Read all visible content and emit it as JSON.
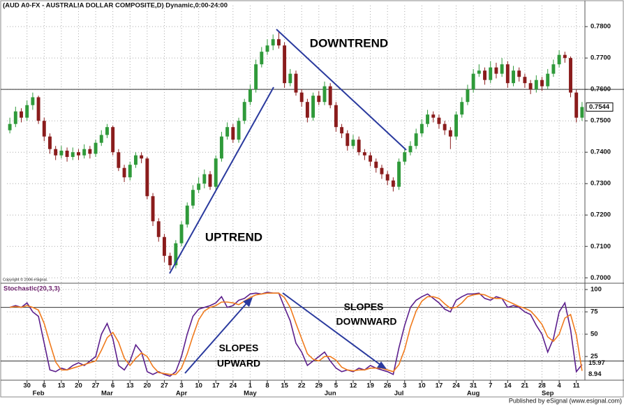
{
  "chart_data": [
    {
      "type": "candlestick",
      "title": "(AUD A0-FX - AUSTRALIA DOLLAR COMPOSITE,D) Dynamic,0:00-24:00",
      "copyright": "Copyright © 2006 eSignal.",
      "annotations": [
        "DOWNTREND",
        "UPTREND"
      ],
      "up_color": "#2f9a3a",
      "down_color": "#8a1c1c",
      "grid": true,
      "hline": 0.76,
      "xlim": [
        -0.5,
        100.5
      ],
      "xticks": [
        {
          "value": 3,
          "label": "30"
        },
        {
          "value": 6,
          "label": "6"
        },
        {
          "value": 9,
          "label": "13"
        },
        {
          "value": 12,
          "label": "20"
        },
        {
          "value": 15,
          "label": "27"
        },
        {
          "value": 18,
          "label": "6"
        },
        {
          "value": 21,
          "label": "13"
        },
        {
          "value": 24,
          "label": "20"
        },
        {
          "value": 27,
          "label": "27"
        },
        {
          "value": 30,
          "label": "3"
        },
        {
          "value": 33,
          "label": "10"
        },
        {
          "value": 36,
          "label": "17"
        },
        {
          "value": 39,
          "label": "24"
        },
        {
          "value": 42,
          "label": "1"
        },
        {
          "value": 45,
          "label": "8"
        },
        {
          "value": 48,
          "label": "15"
        },
        {
          "value": 51,
          "label": "22"
        },
        {
          "value": 54,
          "label": "29"
        },
        {
          "value": 57,
          "label": "5"
        },
        {
          "value": 60,
          "label": "12"
        },
        {
          "value": 63,
          "label": "19"
        },
        {
          "value": 66,
          "label": "26"
        },
        {
          "value": 69,
          "label": "3"
        },
        {
          "value": 72,
          "label": "10"
        },
        {
          "value": 75,
          "label": "17"
        },
        {
          "value": 78,
          "label": "24"
        },
        {
          "value": 81,
          "label": "31"
        },
        {
          "value": 84,
          "label": "7"
        },
        {
          "value": 87,
          "label": "14"
        },
        {
          "value": 90,
          "label": "21"
        },
        {
          "value": 93,
          "label": "28"
        },
        {
          "value": 96,
          "label": "4"
        },
        {
          "value": 99,
          "label": "11"
        }
      ],
      "month_ticks": [
        {
          "value": 5,
          "label": "Feb"
        },
        {
          "value": 17,
          "label": "Mar"
        },
        {
          "value": 30,
          "label": "Apr"
        },
        {
          "value": 42,
          "label": "May"
        },
        {
          "value": 56,
          "label": "Jun"
        },
        {
          "value": 68,
          "label": "Jul"
        },
        {
          "value": 81,
          "label": "Aug"
        },
        {
          "value": 94,
          "label": "Sep"
        }
      ],
      "ylim": [
        0.6985,
        0.7867
      ],
      "yticks": [
        {
          "value": 0.7,
          "label": "0.7000"
        },
        {
          "value": 0.71,
          "label": "0.7100"
        },
        {
          "value": 0.72,
          "label": "0.7200"
        },
        {
          "value": 0.73,
          "label": "0.7300"
        },
        {
          "value": 0.74,
          "label": "0.7400"
        },
        {
          "value": 0.75,
          "label": "0.7500"
        },
        {
          "value": 0.76,
          "label": "0.7600"
        },
        {
          "value": 0.77,
          "label": "0.7700"
        },
        {
          "value": 0.78,
          "label": "0.7800"
        }
      ],
      "open": [
        0.747,
        0.749,
        0.753,
        0.751,
        0.755,
        0.7575,
        0.75,
        0.745,
        0.741,
        0.739,
        0.7405,
        0.7385,
        0.74,
        0.739,
        0.741,
        0.7395,
        0.743,
        0.7455,
        0.748,
        0.74,
        0.735,
        0.732,
        0.736,
        0.739,
        0.738,
        0.726,
        0.718,
        0.713,
        0.707,
        0.704,
        0.711,
        0.717,
        0.723,
        0.728,
        0.73,
        0.733,
        0.729,
        0.738,
        0.745,
        0.748,
        0.744,
        0.75,
        0.756,
        0.76,
        0.768,
        0.772,
        0.774,
        0.776,
        0.774,
        0.762,
        0.765,
        0.759,
        0.756,
        0.751,
        0.758,
        0.756,
        0.761,
        0.755,
        0.748,
        0.746,
        0.742,
        0.744,
        0.74,
        0.739,
        0.737,
        0.735,
        0.733,
        0.731,
        0.729,
        0.737,
        0.74,
        0.742,
        0.746,
        0.749,
        0.752,
        0.751,
        0.749,
        0.747,
        0.745,
        0.752,
        0.756,
        0.76,
        0.765,
        0.766,
        0.763,
        0.767,
        0.765,
        0.768,
        0.762,
        0.766,
        0.764,
        0.762,
        0.76,
        0.763,
        0.761,
        0.765,
        0.768,
        0.771,
        0.77,
        0.759,
        0.751
      ],
      "high": [
        0.751,
        0.7545,
        0.754,
        0.7565,
        0.759,
        0.758,
        0.751,
        0.746,
        0.742,
        0.742,
        0.7415,
        0.7415,
        0.741,
        0.7425,
        0.742,
        0.744,
        0.747,
        0.749,
        0.7485,
        0.741,
        0.736,
        0.737,
        0.74,
        0.74,
        0.7385,
        0.727,
        0.719,
        0.714,
        0.708,
        0.712,
        0.718,
        0.724,
        0.7295,
        0.732,
        0.7345,
        0.734,
        0.739,
        0.7465,
        0.7495,
        0.749,
        0.751,
        0.757,
        0.7615,
        0.7695,
        0.7735,
        0.776,
        0.7775,
        0.7785,
        0.775,
        0.7665,
        0.766,
        0.76,
        0.757,
        0.759,
        0.7595,
        0.7625,
        0.762,
        0.756,
        0.749,
        0.747,
        0.7455,
        0.745,
        0.741,
        0.74,
        0.738,
        0.736,
        0.734,
        0.732,
        0.738,
        0.7415,
        0.7435,
        0.7475,
        0.7505,
        0.7535,
        0.753,
        0.752,
        0.75,
        0.748,
        0.753,
        0.7575,
        0.7615,
        0.7665,
        0.768,
        0.767,
        0.769,
        0.7685,
        0.77,
        0.769,
        0.7675,
        0.767,
        0.765,
        0.763,
        0.7645,
        0.764,
        0.7665,
        0.7695,
        0.7725,
        0.772,
        0.7705,
        0.76,
        0.756
      ],
      "low": [
        0.746,
        0.748,
        0.7495,
        0.75,
        0.7535,
        0.749,
        0.7435,
        0.7395,
        0.7375,
        0.738,
        0.737,
        0.7375,
        0.7375,
        0.738,
        0.738,
        0.7385,
        0.742,
        0.7445,
        0.739,
        0.734,
        0.7305,
        0.731,
        0.735,
        0.7365,
        0.725,
        0.7165,
        0.7115,
        0.705,
        0.7025,
        0.703,
        0.71,
        0.716,
        0.722,
        0.727,
        0.7285,
        0.728,
        0.728,
        0.737,
        0.744,
        0.743,
        0.743,
        0.749,
        0.755,
        0.759,
        0.767,
        0.771,
        0.7725,
        0.773,
        0.7605,
        0.761,
        0.758,
        0.7545,
        0.7495,
        0.75,
        0.755,
        0.755,
        0.754,
        0.7465,
        0.7445,
        0.7405,
        0.741,
        0.739,
        0.7375,
        0.7355,
        0.7335,
        0.7315,
        0.7295,
        0.7275,
        0.728,
        0.736,
        0.739,
        0.741,
        0.745,
        0.748,
        0.7495,
        0.7475,
        0.7455,
        0.741,
        0.744,
        0.751,
        0.755,
        0.759,
        0.764,
        0.7615,
        0.762,
        0.7635,
        0.764,
        0.7605,
        0.761,
        0.7625,
        0.7605,
        0.7585,
        0.759,
        0.7595,
        0.76,
        0.764,
        0.767,
        0.7685,
        0.7575,
        0.7495,
        0.75
      ],
      "close": [
        0.749,
        0.753,
        0.751,
        0.755,
        0.7575,
        0.75,
        0.745,
        0.741,
        0.739,
        0.7405,
        0.7385,
        0.74,
        0.739,
        0.741,
        0.7395,
        0.743,
        0.7455,
        0.748,
        0.74,
        0.735,
        0.732,
        0.736,
        0.739,
        0.738,
        0.726,
        0.718,
        0.713,
        0.707,
        0.704,
        0.711,
        0.717,
        0.723,
        0.728,
        0.73,
        0.733,
        0.729,
        0.738,
        0.745,
        0.748,
        0.744,
        0.75,
        0.756,
        0.76,
        0.768,
        0.772,
        0.774,
        0.776,
        0.774,
        0.762,
        0.765,
        0.759,
        0.756,
        0.751,
        0.758,
        0.756,
        0.761,
        0.755,
        0.748,
        0.746,
        0.742,
        0.744,
        0.74,
        0.739,
        0.737,
        0.735,
        0.733,
        0.731,
        0.729,
        0.737,
        0.74,
        0.742,
        0.746,
        0.749,
        0.752,
        0.751,
        0.749,
        0.747,
        0.745,
        0.752,
        0.756,
        0.76,
        0.765,
        0.766,
        0.763,
        0.767,
        0.765,
        0.768,
        0.762,
        0.766,
        0.764,
        0.762,
        0.76,
        0.763,
        0.761,
        0.765,
        0.768,
        0.771,
        0.77,
        0.759,
        0.751,
        0.7544
      ]
    },
    {
      "type": "line",
      "title": "Stochastic(20,3,3)",
      "annotations": [
        [
          "SLOPES",
          "UPWARD"
        ],
        [
          "SLOPES",
          "DOWNWARD"
        ]
      ],
      "grid": true,
      "levels": [
        80,
        20
      ],
      "ylim": [
        -1.5,
        105.5
      ],
      "yticks": [
        25,
        50,
        75,
        100
      ],
      "series": [
        {
          "color": "#5b1e8c",
          "values": [
            80,
            82,
            80,
            85,
            75,
            70,
            40,
            10,
            8,
            12,
            10,
            15,
            18,
            15,
            20,
            25,
            50,
            62,
            45,
            15,
            10,
            20,
            38,
            30,
            8,
            5,
            8,
            5,
            3,
            8,
            25,
            50,
            70,
            78,
            80,
            82,
            85,
            92,
            80,
            82,
            88,
            90,
            95,
            96,
            95,
            97,
            96,
            96,
            80,
            65,
            40,
            30,
            15,
            20,
            25,
            30,
            20,
            12,
            8,
            10,
            8,
            12,
            10,
            15,
            12,
            10,
            8,
            5,
            35,
            60,
            80,
            88,
            92,
            95,
            90,
            85,
            78,
            75,
            88,
            92,
            95,
            95,
            96,
            90,
            88,
            92,
            90,
            80,
            82,
            80,
            75,
            72,
            60,
            50,
            30,
            45,
            75,
            85,
            55,
            8,
            15.97
          ]
        },
        {
          "color": "#f07a1c",
          "values": [
            80,
            81,
            80,
            82,
            80,
            77,
            62,
            40,
            19,
            10,
            10,
            12,
            14,
            16,
            18,
            20,
            32,
            46,
            52,
            41,
            23,
            15,
            23,
            29,
            25,
            14,
            7,
            6,
            5,
            5,
            12,
            28,
            48,
            66,
            76,
            80,
            82,
            86,
            86,
            85,
            83,
            87,
            91,
            94,
            95,
            96,
            96,
            96,
            91,
            80,
            62,
            45,
            28,
            22,
            20,
            25,
            25,
            21,
            13,
            10,
            9,
            10,
            10,
            12,
            12,
            12,
            10,
            8,
            16,
            33,
            58,
            76,
            87,
            92,
            92,
            90,
            84,
            79,
            80,
            85,
            92,
            94,
            95,
            94,
            91,
            90,
            90,
            87,
            84,
            81,
            79,
            76,
            69,
            61,
            47,
            42,
            50,
            68,
            72,
            49,
            8.94
          ]
        }
      ]
    }
  ],
  "footer": "Published by eSignal (www.esignal.com)"
}
